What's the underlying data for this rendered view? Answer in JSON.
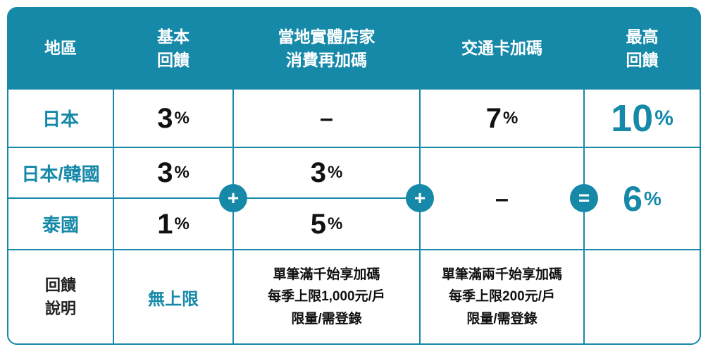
{
  "theme": {
    "teal": "#1689A9",
    "text_black": "#111111",
    "background": "#ffffff"
  },
  "percent_sign": "%",
  "operators": {
    "plus": "+",
    "equals": "="
  },
  "table": {
    "header": {
      "region": "地區",
      "basic": "基本\n回饋",
      "local": "當地實體店家\n消費再加碼",
      "transit": "交通卡加碼",
      "max": "最高\n回饋"
    },
    "rows": {
      "japan": {
        "region": "日本",
        "basic": "3",
        "local": "–",
        "transit": "7",
        "max": "10"
      },
      "japan_korea": {
        "region": "日本/韓國",
        "basic": "3",
        "local": "3"
      },
      "thailand": {
        "region": "泰國",
        "basic": "1",
        "local": "5"
      },
      "merged": {
        "transit": "–",
        "max": "6"
      },
      "notes": {
        "region": "回饋\n說明",
        "basic": "無上限",
        "local": "單筆滿千始享加碼\n每季上限1,000元/戶\n限量/需登錄",
        "transit": "單筆滿兩千始享加碼\n每季上限200元/戶\n限量/需登錄"
      }
    }
  },
  "chart_data": {
    "type": "table",
    "columns": [
      "地區",
      "基本回饋",
      "當地實體店家消費再加碼",
      "交通卡加碼",
      "最高回饋"
    ],
    "rows": [
      {
        "地區": "日本",
        "基本回饋": "3%",
        "當地實體店家消費再加碼": "–",
        "交通卡加碼": "7%",
        "最高回饋": "10%"
      },
      {
        "地區": "日本/韓國",
        "基本回饋": "3%",
        "當地實體店家消費再加碼": "3%",
        "交通卡加碼": "–",
        "最高回饋": "6%"
      },
      {
        "地區": "泰國",
        "基本回饋": "1%",
        "當地實體店家消費再加碼": "5%",
        "交通卡加碼": "–",
        "最高回饋": "6%"
      },
      {
        "地區": "回饋說明",
        "基本回饋": "無上限",
        "當地實體店家消費再加碼": "單筆滿千始享加碼 每季上限1,000元/戶 限量/需登錄",
        "交通卡加碼": "單筆滿兩千始享加碼 每季上限200元/戶 限量/需登錄",
        "最高回饋": ""
      }
    ],
    "merged_cells": [
      {
        "column": "交通卡加碼",
        "rows": [
          "日本/韓國",
          "泰國"
        ],
        "value": "–"
      },
      {
        "column": "最高回饋",
        "rows": [
          "日本/韓國",
          "泰國"
        ],
        "value": "6%"
      }
    ],
    "operators": [
      "+",
      "+",
      "="
    ],
    "legend_position": "none",
    "grid": true
  }
}
